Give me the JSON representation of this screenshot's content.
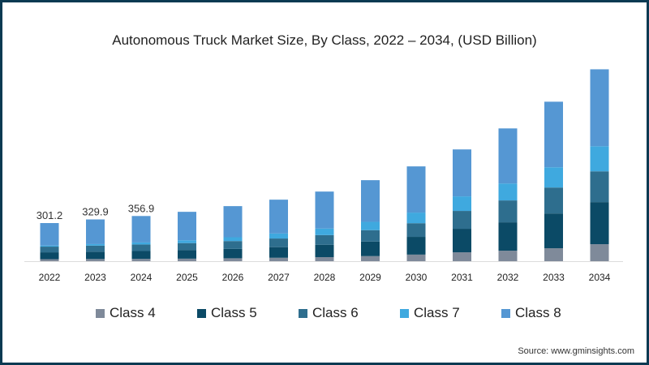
{
  "chart_data": {
    "type": "bar",
    "stacked": true,
    "title": "Autonomous Truck Market Size, By Class, 2022 – 2034, (USD Billion)",
    "categories": [
      "2022",
      "2023",
      "2024",
      "2025",
      "2026",
      "2027",
      "2028",
      "2029",
      "2030",
      "2031",
      "2032",
      "2033",
      "2034"
    ],
    "series": [
      {
        "name": "Class 4",
        "color": "#7f8a9a",
        "values": [
          16,
          17,
          18,
          20,
          23,
          27,
          32,
          40,
          52,
          70,
          83,
          102,
          134
        ]
      },
      {
        "name": "Class 5",
        "color": "#0b4a66",
        "values": [
          54,
          58,
          62,
          67,
          74,
          84,
          97,
          115,
          140,
          186,
          224,
          275,
          333
        ]
      },
      {
        "name": "Class 6",
        "color": "#2e6e8e",
        "values": [
          45,
          48,
          52,
          56,
          62,
          68,
          77,
          90,
          108,
          141,
          173,
          205,
          243
        ]
      },
      {
        "name": "Class 7",
        "color": "#3fa9df",
        "values": [
          8,
          12,
          16,
          22,
          30,
          40,
          52,
          66,
          84,
          115,
          134,
          160,
          198
        ]
      },
      {
        "name": "Class 8",
        "color": "#5597d3",
        "values": [
          178.2,
          194.9,
          208.9,
          225,
          246,
          267,
          292,
          329,
          365,
          371,
          435,
          518,
          608
        ]
      }
    ],
    "data_labels": [
      {
        "category": "2022",
        "text": "301.2"
      },
      {
        "category": "2023",
        "text": "329.9"
      },
      {
        "category": "2024",
        "text": "356.9"
      }
    ],
    "ylim": [
      0,
      1600
    ],
    "grid": false,
    "legend": "bottom",
    "xlabel": "",
    "ylabel": ""
  },
  "source": "Source: www.gminsights.com"
}
